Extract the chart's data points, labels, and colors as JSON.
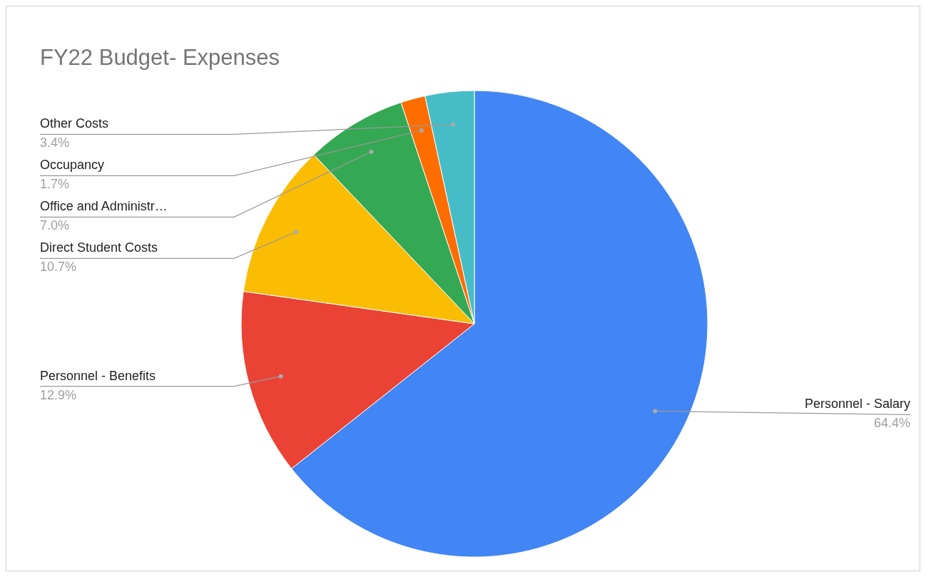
{
  "chart_data": {
    "type": "pie",
    "title": "FY22 Budget- Expenses",
    "categories": [
      "Personnel - Salary",
      "Personnel - Benefits",
      "Direct Student Costs",
      "Office and Administr…",
      "Occupancy",
      "Other Costs"
    ],
    "values": [
      64.4,
      12.9,
      10.7,
      7.0,
      1.7,
      3.4
    ],
    "value_labels": [
      "64.4%",
      "12.9%",
      "10.7%",
      "7.0%",
      "1.7%",
      "3.4%"
    ],
    "colors": [
      "#4285f4",
      "#ea4335",
      "#fbbc04",
      "#34a853",
      "#ff6d01",
      "#46bdc6"
    ]
  }
}
